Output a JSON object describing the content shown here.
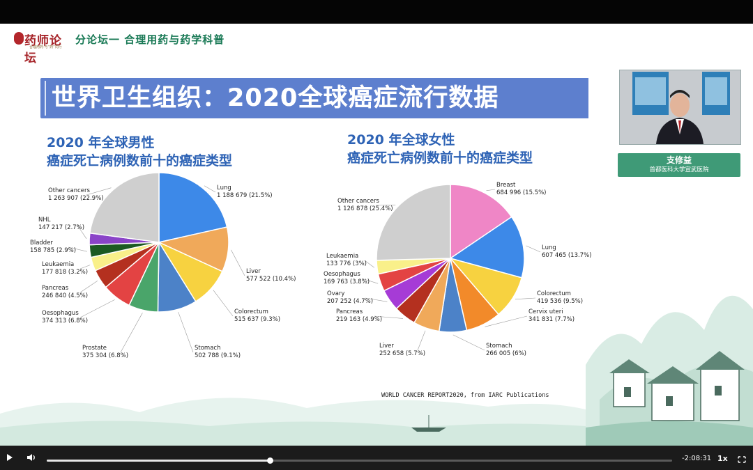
{
  "header": {
    "logo_text": "药师论坛",
    "logo_sub": "合理用药·与“药”同行",
    "forum_title": "分论坛一 合理用药与药学科普"
  },
  "slide": {
    "title": "世界卫生组织：2020全球癌症流行数据",
    "left_subtitle_1": "2020 年全球男性",
    "left_subtitle_2": "癌症死亡病例数前十的癌症类型",
    "right_subtitle_1": "2020 年全球女性",
    "right_subtitle_2": "癌症死亡病例数前十的癌症类型",
    "source": "WORLD CANCER REPORT2020, from IARC Publications"
  },
  "speaker": {
    "name": "支修益",
    "institution": "首都医科大学宣武医院"
  },
  "player": {
    "time_remaining": "-2:08:31",
    "speed": "1x",
    "progress": 0.357
  },
  "chart_data": [
    {
      "type": "pie",
      "title": "2020 年全球男性 癌症死亡病例数前十的癌症类型",
      "slices": [
        {
          "name": "Lung",
          "count": "1 188 679",
          "pct": "21.5%",
          "value": 21.5,
          "color": "#3d89e8"
        },
        {
          "name": "Liver",
          "count": "577 522",
          "pct": "10.4%",
          "value": 10.4,
          "color": "#f0a95a"
        },
        {
          "name": "Colorectum",
          "count": "515 637",
          "pct": "9.3%",
          "value": 9.3,
          "color": "#f7d240"
        },
        {
          "name": "Stomach",
          "count": "502 788",
          "pct": "9.1%",
          "value": 9.1,
          "color": "#4c82c8"
        },
        {
          "name": "Prostate",
          "count": "375 304",
          "pct": "6.8%",
          "value": 6.8,
          "color": "#4aa56a"
        },
        {
          "name": "Oesophagus",
          "count": "374 313",
          "pct": "6.8%",
          "value": 6.8,
          "color": "#e34343"
        },
        {
          "name": "Pancreas",
          "count": "246 840",
          "pct": "4.5%",
          "value": 4.5,
          "color": "#b4301f"
        },
        {
          "name": "Leukaemia",
          "count": "177 818",
          "pct": "3.2%",
          "value": 3.2,
          "color": "#f9f08a"
        },
        {
          "name": "Bladder",
          "count": "158 785",
          "pct": "2.9%",
          "value": 2.9,
          "color": "#1c5a22"
        },
        {
          "name": "NHL",
          "count": "147 217",
          "pct": "2.7%",
          "value": 2.7,
          "color": "#8a44c8"
        },
        {
          "name": "Other cancers",
          "count": "1 263 907",
          "pct": "22.9%",
          "value": 22.9,
          "color": "#cfcfcf"
        }
      ]
    },
    {
      "type": "pie",
      "title": "2020 年全球女性 癌症死亡病例数前十的癌症类型",
      "slices": [
        {
          "name": "Breast",
          "count": "684 996",
          "pct": "15.5%",
          "value": 15.5,
          "color": "#ef86c6"
        },
        {
          "name": "Lung",
          "count": "607 465",
          "pct": "13.7%",
          "value": 13.7,
          "color": "#3d89e8"
        },
        {
          "name": "Colorectum",
          "count": "419 536",
          "pct": "9.5%",
          "value": 9.5,
          "color": "#f7d240"
        },
        {
          "name": "Cervix uteri",
          "count": "341 831",
          "pct": "7.7%",
          "value": 7.7,
          "color": "#f28a2a"
        },
        {
          "name": "Stomach",
          "count": "266 005",
          "pct": "6%",
          "value": 6,
          "color": "#4c82c8"
        },
        {
          "name": "Liver",
          "count": "252 658",
          "pct": "5.7%",
          "value": 5.7,
          "color": "#f0a95a"
        },
        {
          "name": "Pancreas",
          "count": "219 163",
          "pct": "4.9%",
          "value": 4.9,
          "color": "#b4301f"
        },
        {
          "name": "Ovary",
          "count": "207 252",
          "pct": "4.7%",
          "value": 4.7,
          "color": "#a63bd6"
        },
        {
          "name": "Oesophagus",
          "count": "169 763",
          "pct": "3.8%",
          "value": 3.8,
          "color": "#e34343"
        },
        {
          "name": "Leukaemia",
          "count": "133 776",
          "pct": "3%",
          "value": 3,
          "color": "#f9f08a"
        },
        {
          "name": "Other cancers",
          "count": "1 126 878",
          "pct": "25.4%",
          "value": 25.4,
          "color": "#cfcfcf"
        }
      ]
    }
  ]
}
